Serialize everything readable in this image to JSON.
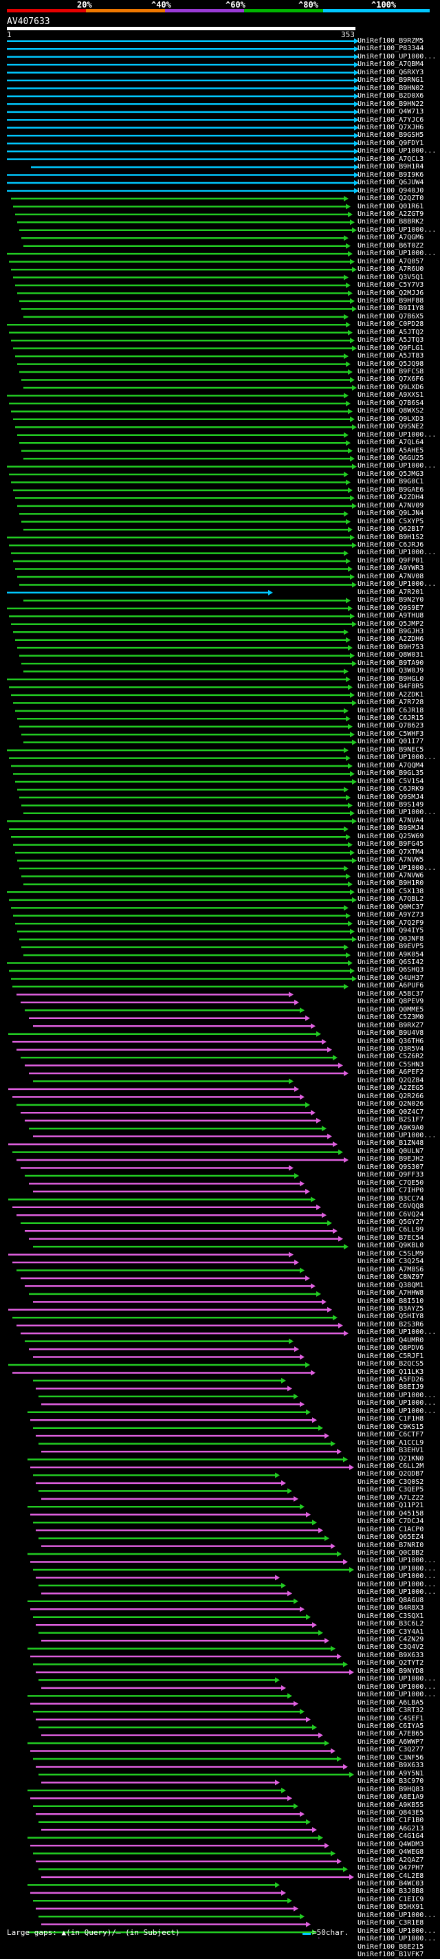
{
  "scale": {
    "labels": [
      "20%",
      "^40%",
      "^60%",
      "^80%",
      "^100%"
    ],
    "colors": [
      "#e60000",
      "#f07800",
      "#9a3bd6",
      "#00b400",
      "#00c8ff"
    ]
  },
  "query": {
    "title": "AV407633",
    "start": "1",
    "end": "353"
  },
  "colors": {
    "cyan": "#00c8ff",
    "green": "#22cc22",
    "magenta": "#e060e0",
    "grey": "#556"
  },
  "hits": [
    "UniRef100_B9RZM5",
    "UniRef100_P83344",
    "UniRef100_UP1000...",
    "UniRef100_A7QBM4",
    "UniRef100_Q6RXY3",
    "UniRef100_B9RNG1",
    "UniRef100_B9HN02",
    "UniRef100_B2D0X6",
    "UniRef100_B9HN22",
    "UniRef100_Q4W713",
    "UniRef100_A7YJC6",
    "UniRef100_Q7XJH6",
    "UniRef100_B9GSH5",
    "UniRef100_Q9FDY1",
    "UniRef100_UP1000...",
    "UniRef100_A7QCL3",
    "UniRef100_B9H1R4",
    "UniRef100_B9I9K6",
    "UniRef100_Q6JUW4",
    "UniRef100_Q940J0",
    "UniRef100_Q2QZT0",
    "UniRef100_Q01R61",
    "UniRef100_A2ZGT9",
    "UniRef100_B8BRK2",
    "UniRef100_UP1000...",
    "UniRef100_A7QGM6",
    "UniRef100_B6T0Z2",
    "UniRef100_UP1000...",
    "UniRef100_A7Q057",
    "UniRef100_A7R6U0",
    "UniRef100_Q3V5Q1",
    "UniRef100_C5Y7V3",
    "UniRef100_Q2MJJ6",
    "UniRef100_B9HF88",
    "UniRef100_B9I1Y8",
    "UniRef100_Q7B6X5",
    "UniRef100_C0PD28",
    "UniRef100_A5JTQ2",
    "UniRef100_A5JTQ3",
    "UniRef100_Q9FLG1",
    "UniRef100_A5JT83",
    "UniRef100_Q5JQ98",
    "UniRef100_B9FCS8",
    "UniRef100_Q7X6F6",
    "UniRef100_Q9LXD6",
    "UniRef100_A9XXS1",
    "UniRef100_Q7B6S4",
    "UniRef100_Q8WXS2",
    "UniRef100_Q9LXD3",
    "UniRef100_Q9SNE2",
    "UniRef100_UP1000...",
    "UniRef100_A7QL64",
    "UniRef100_A5AHE5",
    "UniRef100_Q6GU25",
    "UniRef100_UP1000...",
    "UniRef100_Q5JMG3",
    "UniRef100_B9G0C1",
    "UniRef100_B9GAE6",
    "UniRef100_A2ZDH4",
    "UniRef100_A7NV09",
    "UniRef100_Q9LJN4",
    "UniRef100_C5XYP5",
    "UniRef100_Q62B17",
    "UniRef100_B9H1S2",
    "UniRef100_C6JRJ6",
    "UniRef100_UP1000...",
    "UniRef100_Q9FP01",
    "UniRef100_A9YWR3",
    "UniRef100_A7NV08",
    "UniRef100_UP1000...",
    "UniRef100_A7R201",
    "UniRef100_B9N2Y0",
    "UniRef100_Q9S9E7",
    "UniRef100_A9THU8",
    "UniRef100_Q5JMP2",
    "UniRef100_B9GJH3",
    "UniRef100_A2ZDH6",
    "UniRef100_B9H753",
    "UniRef100_Q8W031",
    "UniRef100_B9TA90",
    "UniRef100_Q3W0J9",
    "UniRef100_B9HGL0",
    "UniRef100_B4F8R5",
    "UniRef100_A2ZDK1",
    "UniRef100_A7R728",
    "UniRef100_C6JR18",
    "UniRef100_C6JR15",
    "UniRef100_Q7B623",
    "UniRef100_C5WHF3",
    "UniRef100_Q01I77",
    "UniRef100_B9NEC5",
    "UniRef100_UP1000...",
    "UniRef100_A7QQM4",
    "UniRef100_B9GL35",
    "UniRef100_C5V1S4",
    "UniRef100_C6JRK9",
    "UniRef100_Q9SMJ4",
    "UniRef100_B9S149",
    "UniRef100_UP1000...",
    "UniRef100_A7NVA4",
    "UniRef100_B9SMJ4",
    "UniRef100_Q25W69",
    "UniRef100_B9FG45",
    "UniRef100_Q7XTM4",
    "UniRef100_A7NVW5",
    "UniRef100_UP1000...",
    "UniRef100_A7NVW6",
    "UniRef100_B9H1R0",
    "UniRef100_C5X138",
    "UniRef100_A7QBL2",
    "UniRef100_Q0MC37",
    "UniRef100_A9YZ73",
    "UniRef100_A7Q2F9",
    "UniRef100_Q94IY5",
    "UniRef100_Q0JNF8",
    "UniRef100_B9EVP5",
    "UniRef100_A9K054",
    "UniRef100_Q6SI42",
    "UniRef100_Q6SHQ3",
    "UniRef100_Q4UH37",
    "UniRef100_A6PUF6",
    "UniRef100_A5BC37",
    "UniRef100_Q8PEV9",
    "UniRef100_Q0MME5",
    "UniRef100_C5Z3M0",
    "UniRef100_B9RXZ7",
    "UniRef100_B9U4V8",
    "UniRef100_Q36TH6",
    "UniRef100_Q3R5V4",
    "UniRef100_C5Z6R2",
    "UniRef100_C5SHN3",
    "UniRef100_A6PEF2",
    "UniRef100_Q2QZ84",
    "UniRef100_A2ZEG5",
    "UniRef100_Q2R266",
    "UniRef100_Q2N026",
    "UniRef100_Q0Z4C7",
    "UniRef100_B2S1F7",
    "UniRef100_A9K9A0",
    "UniRef100_UP1000...",
    "UniRef100_B1ZN48",
    "UniRef100_Q0ULN7",
    "UniRef100_B9EJH2",
    "UniRef100_Q9S307",
    "UniRef100_Q9FF33",
    "UniRef100_C7QE50",
    "UniRef100_C7IHP0",
    "UniRef100_B3CC74",
    "UniRef100_C6VQQ8",
    "UniRef100_C6VQ24",
    "UniRef100_Q5GY27",
    "UniRef100_C6LL99",
    "UniRef100_B7EC54",
    "UniRef100_Q9KBL0",
    "UniRef100_C5SLM9",
    "UniRef100_C3Q254",
    "UniRef100_A7M8S6",
    "UniRef100_C8NZ97",
    "UniRef100_Q38QM1",
    "UniRef100_A7HHW8",
    "UniRef100_B8I510",
    "UniRef100_B3AYZ5",
    "UniRef100_Q5HIY8",
    "UniRef100_B2S3R6",
    "UniRef100_UP1000...",
    "UniRef100_Q4UMR0",
    "UniRef100_Q8PDV6",
    "UniRef100_C5RJF1",
    "UniRef100_B2QCS5",
    "UniRef100_Q11LK3",
    "UniRef100_A5FD26",
    "UniRef100_B8EIJ9",
    "UniRef100_UP1000...",
    "UniRef100_UP1000...",
    "UniRef100_UP1000...",
    "UniRef100_C1F1H8",
    "UniRef100_C9KS15",
    "UniRef100_C6CTF7",
    "UniRef100_A1CCL9",
    "UniRef100_B3EHV1",
    "UniRef100_Q21KN0",
    "UniRef100_C6LL2M",
    "UniRef100_Q2QDB7",
    "UniRef100_C3Q0S2",
    "UniRef100_C3QEP5",
    "UniRef100_A7LZ22",
    "UniRef100_Q11P21",
    "UniRef100_Q45158",
    "UniRef100_C7DCJ4",
    "UniRef100_C1ACP0",
    "UniRef100_Q65EZ4",
    "UniRef100_B7NRI0",
    "UniRef100_Q0CBB2",
    "UniRef100_UP1000...",
    "UniRef100_UP1000...",
    "UniRef100_UP1000...",
    "UniRef100_UP1000...",
    "UniRef100_UP1000...",
    "UniRef100_Q8A6U8",
    "UniRef100_B4R8X3",
    "UniRef100_C3SQX1",
    "UniRef100_B3C6L2",
    "UniRef100_C3Y4A1",
    "UniRef100_C4ZN29",
    "UniRef100_C3Q4V2",
    "UniRef100_B9X633",
    "UniRef100_Q2TYT2",
    "UniRef100_B9NYD8",
    "UniRef100_UP1000...",
    "UniRef100_UP1000...",
    "UniRef100_UP1000...",
    "UniRef100_A6LBA5",
    "UniRef100_C3RT32",
    "UniRef100_C4SEF1",
    "UniRef100_C6IYA5",
    "UniRef100_A7EB65",
    "UniRef100_A6WWP7",
    "UniRef100_C3Q277",
    "UniRef100_C3NF56",
    "UniRef100_B9X633",
    "UniRef100_A9Y5N1",
    "UniRef100_B3C970",
    "UniRef100_B9HQ83",
    "UniRef100_A8E1A9",
    "UniRef100_A9KB55",
    "UniRef100_Q843E5",
    "UniRef100_C1F1B0",
    "UniRef100_A6G213",
    "UniRef100_C4G1G4",
    "UniRef100_Q4WDM3",
    "UniRef100_Q4WEG8",
    "UniRef100_A2QAZ7",
    "UniRef100_Q47PH7",
    "UniRef100_C4L2E8",
    "UniRef100_B4WC03",
    "UniRef100_B3J8B8",
    "UniRef100_C1EIC9",
    "UniRef100_B5HX91",
    "UniRef100_UP1000...",
    "UniRef100_C3R1E8",
    "UniRef100_UP1000...",
    "UniRef100_UP1000...",
    "UniRef100_B8E215",
    "UniRef100_B1VFK7"
  ],
  "footer": {
    "left": "Large gaps: ▲(in Query)/– (in Subject)",
    "right": "=50char."
  }
}
